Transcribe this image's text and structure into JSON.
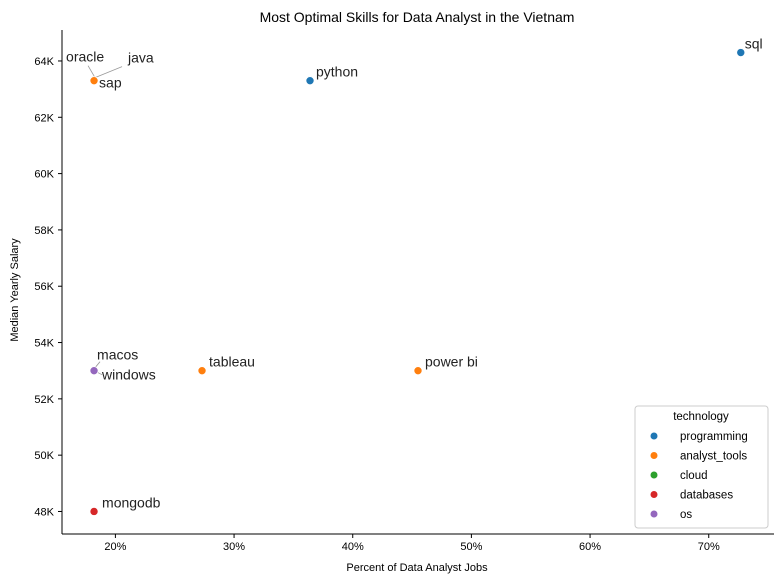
{
  "chart_data": {
    "type": "scatter",
    "title": "Most Optimal Skills for Data Analyst in the Vietnam",
    "xlabel": "Percent of Data Analyst Jobs",
    "ylabel": "Median Yearly Salary",
    "xlim": [
      15.5,
      75.5
    ],
    "ylim": [
      47200,
      65100
    ],
    "x_ticks": [
      20,
      30,
      40,
      50,
      60,
      70
    ],
    "x_tick_labels": [
      "20%",
      "30%",
      "40%",
      "50%",
      "60%",
      "70%"
    ],
    "y_ticks": [
      48000,
      50000,
      52000,
      54000,
      56000,
      58000,
      60000,
      62000,
      64000
    ],
    "y_tick_labels": [
      "48K",
      "50K",
      "52K",
      "54K",
      "56K",
      "58K",
      "60K",
      "62K",
      "64K"
    ],
    "grid": false,
    "legend": {
      "title": "technology",
      "placement": "bottom-right",
      "entries": [
        {
          "name": "programming",
          "color": "#1f77b4"
        },
        {
          "name": "analyst_tools",
          "color": "#ff7f0e"
        },
        {
          "name": "cloud",
          "color": "#2ca02c"
        },
        {
          "name": "databases",
          "color": "#d62728"
        },
        {
          "name": "os",
          "color": "#9467bd"
        }
      ]
    },
    "points": [
      {
        "skill": "sql",
        "x": 72.7,
        "y": 64300,
        "technology": "programming"
      },
      {
        "skill": "python",
        "x": 36.4,
        "y": 63300,
        "technology": "programming"
      },
      {
        "skill": "java",
        "x": 18.2,
        "y": 63300,
        "technology": "programming"
      },
      {
        "skill": "oracle",
        "x": 18.2,
        "y": 63300,
        "technology": "analyst_tools"
      },
      {
        "skill": "sap",
        "x": 18.2,
        "y": 63300,
        "technology": "analyst_tools"
      },
      {
        "skill": "power bi",
        "x": 45.5,
        "y": 53000,
        "technology": "analyst_tools"
      },
      {
        "skill": "tableau",
        "x": 27.3,
        "y": 53000,
        "technology": "analyst_tools"
      },
      {
        "skill": "macos",
        "x": 18.2,
        "y": 53000,
        "technology": "os"
      },
      {
        "skill": "windows",
        "x": 18.2,
        "y": 53000,
        "technology": "os"
      },
      {
        "skill": "mongodb",
        "x": 18.2,
        "y": 48000,
        "technology": "databases"
      }
    ]
  }
}
